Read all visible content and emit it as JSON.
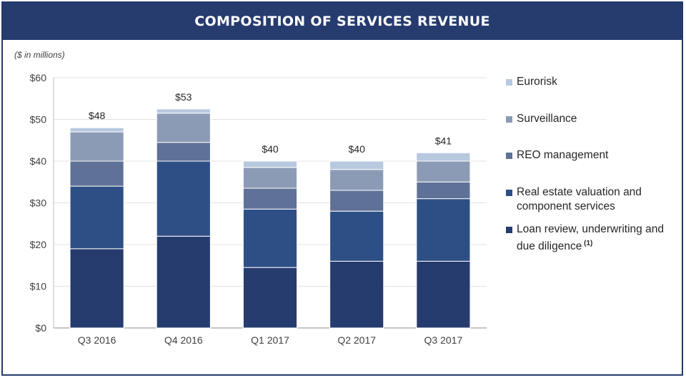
{
  "header": {
    "title": "COMPOSITION OF SERVICES REVENUE"
  },
  "units_note": "($ in millions)",
  "chart_data": {
    "type": "bar",
    "stacked": true,
    "title": "COMPOSITION OF SERVICES REVENUE",
    "ylabel": "($ in millions)",
    "xlabel": "",
    "categories": [
      "Q3 2016",
      "Q4 2016",
      "Q1 2017",
      "Q2 2017",
      "Q3 2017"
    ],
    "ylim": [
      0,
      60
    ],
    "y_ticks": [
      0,
      10,
      20,
      30,
      40,
      50,
      60
    ],
    "y_tick_labels": [
      "$0",
      "$10",
      "$20",
      "$30",
      "$40",
      "$50",
      "$60"
    ],
    "grid": true,
    "legend_position": "right",
    "series": [
      {
        "name": "Loan review, underwriting and due diligence",
        "color": "#263b6e",
        "values": [
          19,
          22,
          14.5,
          16,
          16
        ]
      },
      {
        "name": "Real estate valuation and component services",
        "color": "#2e4f86",
        "values": [
          15,
          18,
          14,
          12,
          15
        ]
      },
      {
        "name": "REO management",
        "color": "#5f7197",
        "values": [
          6,
          4.5,
          5,
          5,
          4
        ]
      },
      {
        "name": "Surveillance",
        "color": "#8c9bb5",
        "values": [
          7,
          7,
          5,
          5,
          5
        ]
      },
      {
        "name": "Eurorisk",
        "color": "#b7c9de",
        "values": [
          1,
          1,
          1.5,
          2,
          2
        ]
      }
    ],
    "totals": [
      48,
      53,
      40,
      40,
      41
    ],
    "total_labels": [
      "$48",
      "$53",
      "$40",
      "$40",
      "$41"
    ]
  },
  "legend": {
    "items": [
      {
        "label": "Eurorisk",
        "color": "#b7c9de"
      },
      {
        "label": "Surveillance",
        "color": "#8c9bb5"
      },
      {
        "label": "REO management",
        "color": "#5f7197"
      },
      {
        "label": "Real estate valuation and component services",
        "color": "#2e4f86"
      },
      {
        "label": "Loan review, underwriting and due diligence",
        "color": "#263b6e",
        "footnote": "(1)"
      }
    ]
  }
}
